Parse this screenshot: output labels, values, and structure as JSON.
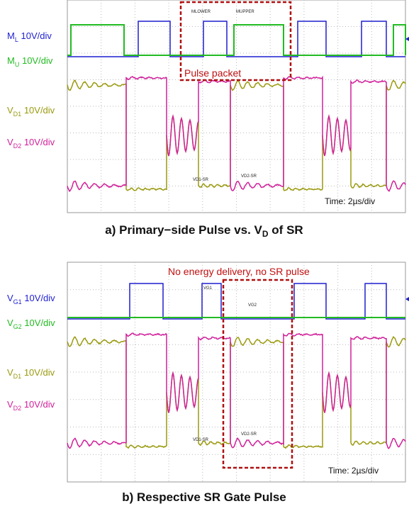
{
  "panels": [
    {
      "channels": [
        {
          "symbol": "M",
          "sub": "L",
          "scale": "10V/div",
          "color": "#1f1fd0"
        },
        {
          "symbol": "M",
          "sub": "U",
          "scale": "10V/div",
          "color": "#22bb22"
        },
        {
          "symbol": "V",
          "sub": "D1",
          "scale": "10V/div",
          "color": "#9a9a10"
        },
        {
          "symbol": "V",
          "sub": "D2",
          "scale": "10V/div",
          "color": "#d0209a"
        }
      ],
      "box_label": "Pulse packet",
      "tags": [
        "MLOWER",
        "MUPPER",
        "VD1-SR",
        "VD2-SR"
      ],
      "time": "Time: 2µs/div",
      "caption": {
        "text": "a) Primary−side Pulse vs. V",
        "sub": "D",
        "tail": " of SR"
      }
    },
    {
      "channels": [
        {
          "symbol": "V",
          "sub": "G1",
          "scale": "10V/div",
          "color": "#1f1fd0"
        },
        {
          "symbol": "V",
          "sub": "G2",
          "scale": "10V/div",
          "color": "#22bb22"
        },
        {
          "symbol": "V",
          "sub": "D1",
          "scale": "10V/div",
          "color": "#9a9a10"
        },
        {
          "symbol": "V",
          "sub": "D2",
          "scale": "10V/div",
          "color": "#d0209a"
        }
      ],
      "box_label": "No energy delivery, no SR pulse",
      "tags": [
        "VG1",
        "VG2",
        "VD1-SR",
        "VD2-SR"
      ],
      "time": "Time: 2µs/div",
      "caption": {
        "text": "b) Respective SR Gate Pulse"
      }
    }
  ]
}
